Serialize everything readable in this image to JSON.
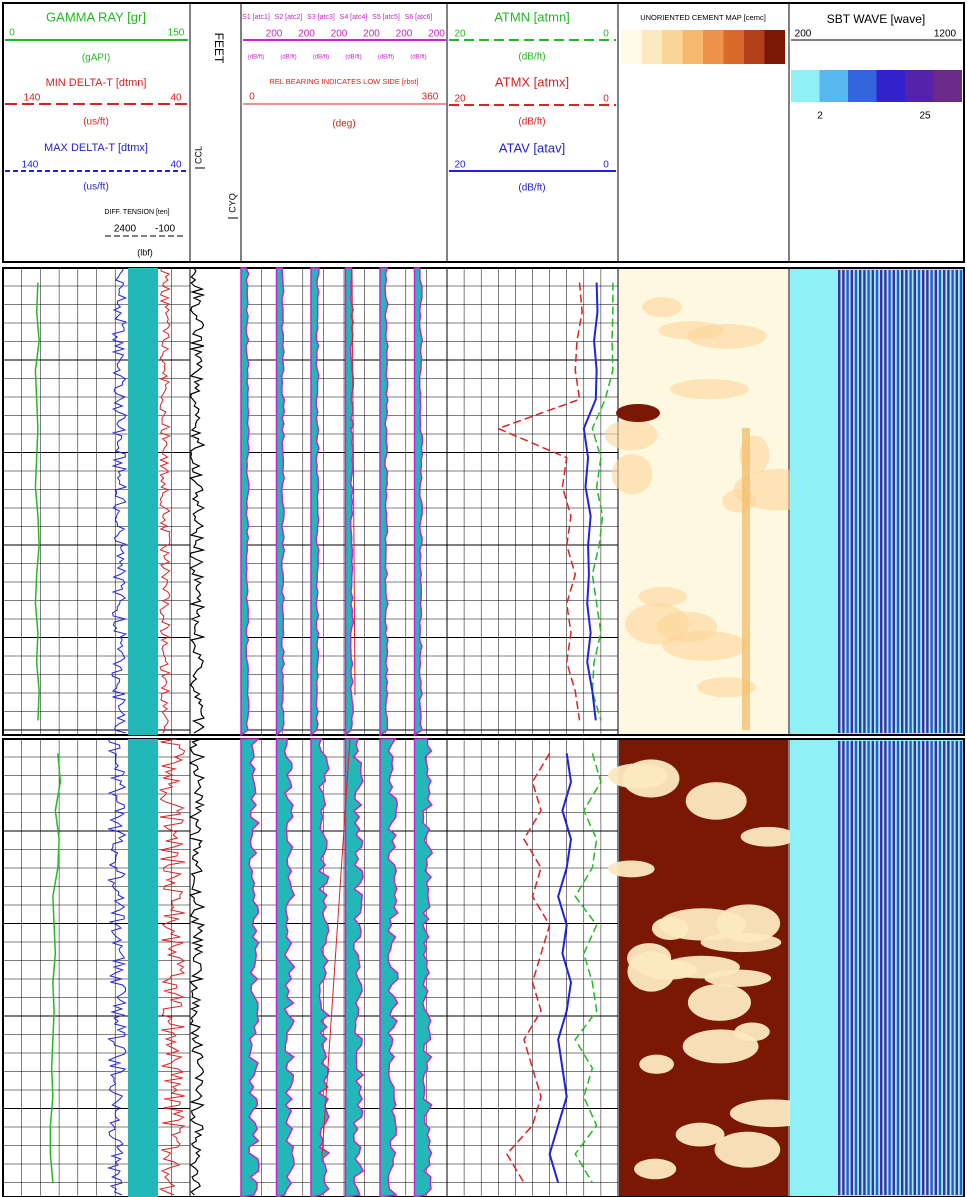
{
  "header": {
    "gamma_ray": {
      "title": "GAMMA RAY [gr]",
      "scale": [
        0,
        150
      ],
      "unit": "(gAPI)"
    },
    "min_delta_t": {
      "title": "MIN DELTA-T [dtmn]",
      "scale": [
        140,
        40
      ],
      "unit": "(us/ft)"
    },
    "max_delta_t": {
      "title": "MAX DELTA-T [dtmx]",
      "scale": [
        140,
        40
      ],
      "unit": "(us/ft)"
    },
    "tension": {
      "title": "DIFF. TENSION [ten]",
      "scale": [
        2400,
        -100
      ],
      "unit": "(lbf)"
    },
    "depth": {
      "title": "FEET",
      "ccl": "CCL",
      "cyq": "CYQ"
    },
    "sectors": {
      "titles": [
        "S1 [atc1]",
        "S2 [atc2]",
        "S3 [atc3]",
        "S4 [atc4]",
        "S5 [atc5]",
        "S6 [atc6]"
      ],
      "tick": 200,
      "unit": "(dB/ft)"
    },
    "rel_bearing": {
      "title": "REL BEARING INDICATES LOW SIDE [rbst]",
      "scale": [
        0,
        360
      ],
      "unit": "(deg)"
    },
    "atmn": {
      "title": "ATMN [atmn]",
      "scale": [
        20,
        0
      ],
      "unit": "(dB/ft)"
    },
    "atmx": {
      "title": "ATMX [atmx]",
      "scale": [
        20,
        0
      ],
      "unit": "(dB/ft)"
    },
    "atav": {
      "title": "ATAV [atav]",
      "scale": [
        20,
        0
      ],
      "unit": "(dB/ft)"
    },
    "cement_map": {
      "title": "UNORIENTED CEMENT MAP [cemc]"
    },
    "sbt_wave": {
      "title": "SBT WAVE [wave]",
      "scale": [
        200,
        1200
      ],
      "color_scale": [
        2,
        25
      ]
    }
  },
  "logs": {
    "upper": {
      "gamma_ray": [
        28,
        27,
        29,
        26,
        27,
        28,
        27,
        26,
        28,
        29,
        27,
        26,
        28,
        27,
        29,
        28
      ],
      "atmn": [
        0.6,
        0.6,
        0.7,
        0.6,
        1.5,
        3,
        2,
        2.5,
        1.8,
        2.2,
        3,
        2.5,
        2,
        2.8,
        3,
        2
      ],
      "atmx": [
        4.5,
        4.2,
        4.8,
        5,
        4.5,
        14,
        6,
        6.5,
        5.5,
        6,
        5,
        6,
        5.5,
        6,
        5,
        4.5
      ],
      "atav": [
        2.5,
        2.4,
        2.8,
        2.5,
        2.6,
        4,
        3.5,
        3.8,
        3.2,
        3.5,
        3.4,
        3.6,
        3.2,
        3.6,
        3,
        2.6
      ]
    },
    "lower": {
      "gamma_ray": [
        44,
        46,
        42,
        45,
        44,
        40,
        41,
        42,
        40,
        41,
        40,
        39,
        40,
        38,
        38,
        40
      ],
      "atmn": [
        3,
        2,
        4,
        2.5,
        3,
        5,
        2.5,
        4,
        3,
        2.5,
        5,
        3,
        4,
        2.5,
        5,
        3
      ],
      "atmx": [
        8,
        10,
        9,
        11,
        9,
        10,
        8,
        9,
        10,
        9,
        11,
        10,
        9,
        10,
        13,
        11
      ],
      "atav": [
        6,
        5.5,
        6.5,
        5.5,
        6,
        7,
        6,
        6.5,
        5.5,
        6,
        7,
        6.5,
        6,
        7,
        8,
        7
      ]
    }
  }
}
